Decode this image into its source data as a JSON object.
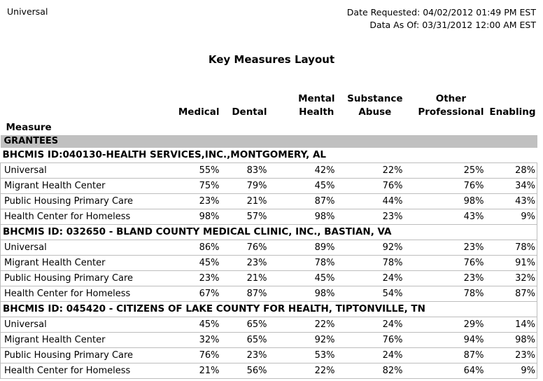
{
  "header": {
    "scope": "Universal",
    "date_requested": "Date Requested: 04/02/2012 01:49 PM EST",
    "data_as_of": "Data As Of: 03/31/2012 12:00 AM EST",
    "title": "Key Measures Layout"
  },
  "table": {
    "measure_column_label": "Measure",
    "section_header": "GRANTEES",
    "columns": [
      "Medical",
      "Dental",
      "Mental\nHealth",
      "Substance\nAbuse",
      "Other\nProfessional",
      "Enabling"
    ],
    "grantees": [
      {
        "bhcmis_id": "BHCMIS ID:040130-HEALTH SERVICES,INC.,MONTGOMERY, AL",
        "rows": [
          {
            "measure": "Universal",
            "values": [
              "55%",
              "83%",
              "42%",
              "22%",
              "25%",
              "28%"
            ]
          },
          {
            "measure": "Migrant Health Center",
            "values": [
              "75%",
              "79%",
              "45%",
              "76%",
              "76%",
              "34%"
            ]
          },
          {
            "measure": "Public Housing Primary Care",
            "values": [
              "23%",
              "21%",
              "87%",
              "44%",
              "98%",
              "43%"
            ]
          },
          {
            "measure": "Health Center for Homeless",
            "values": [
              "98%",
              "57%",
              "98%",
              "23%",
              "43%",
              "9%"
            ]
          }
        ]
      },
      {
        "bhcmis_id": "BHCMIS ID: 032650 - BLAND COUNTY MEDICAL CLINIC, INC., BASTIAN, VA",
        "rows": [
          {
            "measure": "Universal",
            "values": [
              "86%",
              "76%",
              "89%",
              "92%",
              "23%",
              "78%"
            ]
          },
          {
            "measure": "Migrant Health Center",
            "values": [
              "45%",
              "23%",
              "78%",
              "78%",
              "76%",
              "91%"
            ]
          },
          {
            "measure": "Public Housing Primary Care",
            "values": [
              "23%",
              "21%",
              "45%",
              "24%",
              "23%",
              "32%"
            ]
          },
          {
            "measure": "Health Center for Homeless",
            "values": [
              "67%",
              "87%",
              "98%",
              "54%",
              "78%",
              "87%"
            ]
          }
        ]
      },
      {
        "bhcmis_id": "BHCMIS ID: 045420 - CITIZENS OF LAKE COUNTY FOR HEALTH, TIPTONVILLE, TN",
        "rows": [
          {
            "measure": "Universal",
            "values": [
              "45%",
              "65%",
              "22%",
              "24%",
              "29%",
              "14%"
            ]
          },
          {
            "measure": "Migrant Health Center",
            "values": [
              "32%",
              "65%",
              "92%",
              "76%",
              "94%",
              "98%"
            ]
          },
          {
            "measure": "Public Housing Primary Care",
            "values": [
              "76%",
              "23%",
              "53%",
              "24%",
              "87%",
              "23%"
            ]
          },
          {
            "measure": "Health Center for Homeless",
            "values": [
              "21%",
              "56%",
              "22%",
              "82%",
              "64%",
              "9%"
            ]
          }
        ]
      }
    ]
  },
  "colors": {
    "section_header_bg": "#c0c0c0",
    "row_border": "#bdbdbd",
    "text": "#000000",
    "background": "#ffffff"
  }
}
